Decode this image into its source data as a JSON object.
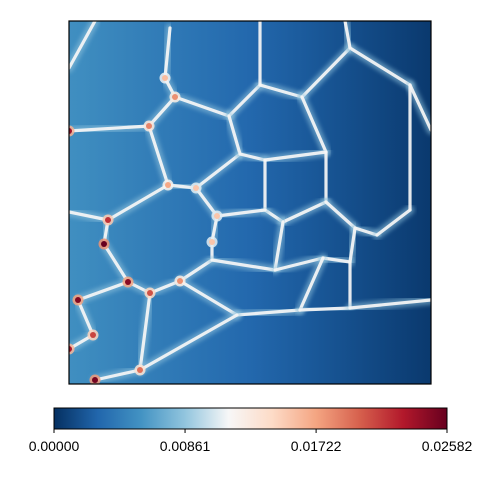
{
  "chart_data": {
    "type": "heatmap",
    "title": "",
    "xlabel": "",
    "ylabel": "",
    "axes_ticks_visible": false,
    "grid": false,
    "colormap": "RdBu_r",
    "colormap_stops": [
      "#053061",
      "#2166ac",
      "#4393c3",
      "#92c5de",
      "#f7f7f7",
      "#fddbc7",
      "#f4a582",
      "#d6604d",
      "#b2182b",
      "#67001f"
    ],
    "value_range": [
      0.0,
      0.02582
    ],
    "colorbar": {
      "orientation": "horizontal",
      "placement": "bottom",
      "ticks": [
        "0.00000",
        "0.00861",
        "0.01722",
        "0.02582"
      ],
      "tick_values": [
        0.0,
        0.00861,
        0.01722,
        0.02582
      ]
    },
    "description_values": {
      "background_level_left": 0.0055,
      "background_level_right": 0.0005,
      "boundary_level": 0.0115,
      "junction_level_max": 0.02582
    }
  },
  "colors": {
    "frame": "#000000",
    "background": "#ffffff"
  }
}
